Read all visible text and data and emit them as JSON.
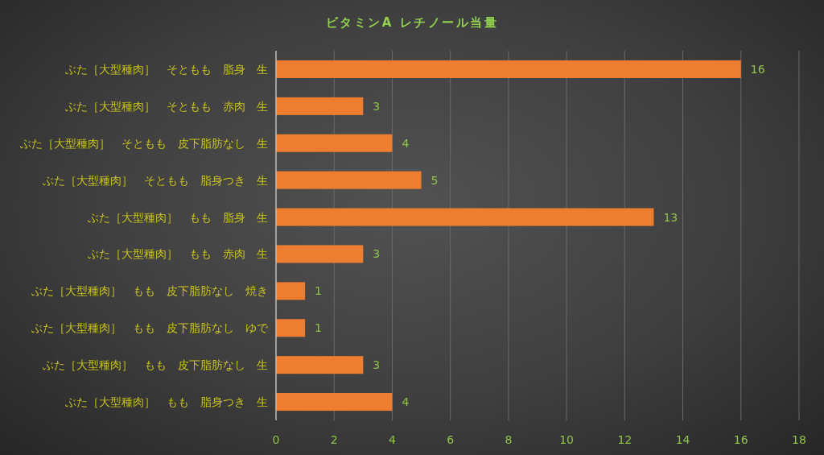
{
  "chart_data": {
    "type": "bar",
    "orientation": "horizontal",
    "title": "ビタミンA レチノール当量",
    "categories": [
      "ぶた［大型種肉］　そともも　脂身　生",
      "ぶた［大型種肉］　そともも　赤肉　生",
      "ぶた［大型種肉］　そともも　皮下脂肪なし　生",
      "ぶた［大型種肉］　そともも　脂身つき　生",
      "ぶた［大型種肉］　もも　脂身　生",
      "ぶた［大型種肉］　もも　赤肉　生",
      "ぶた［大型種肉］　もも　皮下脂肪なし　焼き",
      "ぶた［大型種肉］　もも　皮下脂肪なし　ゆで",
      "ぶた［大型種肉］　もも　皮下脂肪なし　生",
      "ぶた［大型種肉］　もも　脂身つき　生"
    ],
    "values": [
      16,
      3,
      4,
      5,
      13,
      3,
      1,
      1,
      3,
      4
    ],
    "color": "#ed7d31",
    "xlim": [
      0,
      18
    ],
    "xticks": [
      0,
      2,
      4,
      6,
      8,
      10,
      12,
      14,
      16,
      18
    ],
    "grid": "x",
    "data_labels": true
  }
}
